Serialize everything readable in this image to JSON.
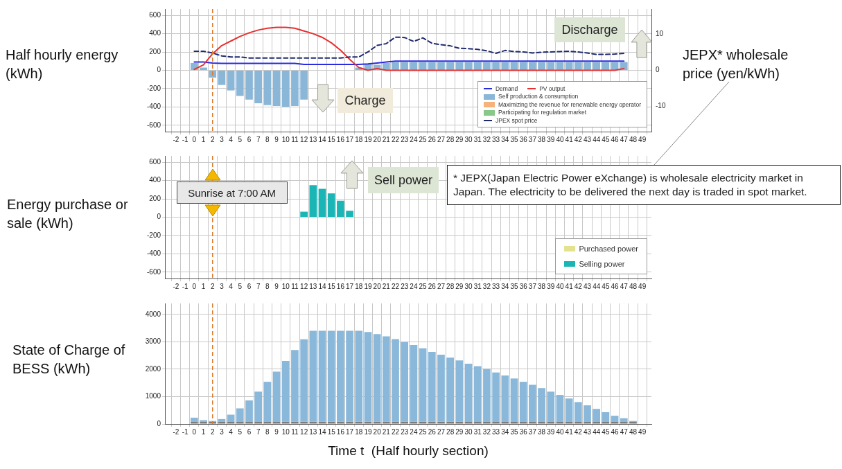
{
  "chart_data": [
    {
      "type": "bar",
      "ylabel": "Half hourly energy (kWh)",
      "y2label": "JEPX* wholesale price (yen/kWh)",
      "x": [
        0,
        1,
        2,
        3,
        4,
        5,
        6,
        7,
        8,
        9,
        10,
        11,
        12,
        13,
        14,
        15,
        16,
        17,
        18,
        19,
        20,
        21,
        22,
        23,
        24,
        25,
        26,
        27,
        28,
        29,
        30,
        31,
        32,
        33,
        34,
        35,
        36,
        37,
        38,
        39,
        40,
        41,
        42,
        43,
        44,
        45,
        46,
        47
      ],
      "xlim": [
        -2.7,
        49.5
      ],
      "xticks": [
        -2,
        -1,
        0,
        1,
        2,
        3,
        4,
        5,
        6,
        7,
        8,
        9,
        10,
        11,
        12,
        13,
        14,
        15,
        16,
        17,
        18,
        19,
        20,
        21,
        22,
        23,
        24,
        25,
        26,
        27,
        28,
        29,
        30,
        31,
        32,
        33,
        34,
        35,
        36,
        37,
        38,
        39,
        40,
        41,
        42,
        43,
        44,
        45,
        46,
        47,
        48,
        49
      ],
      "ylim": [
        -670,
        670
      ],
      "yticks": [
        -600,
        -400,
        -200,
        0,
        200,
        400,
        600
      ],
      "y2lim": [
        -17,
        17
      ],
      "y2ticks": [
        -10,
        0,
        10
      ],
      "grid": true,
      "legend": "bottom right",
      "marker": "none",
      "ref_lines": [
        {
          "axis": "x",
          "value": 2,
          "color": "#e07b28",
          "line_style": "dashed"
        }
      ],
      "annotations": [
        "Discharge",
        "Charge"
      ],
      "series": [
        {
          "name": "Demand",
          "type": "line",
          "color": "#2a2ae0",
          "values": [
            90,
            90,
            80,
            75,
            75,
            75,
            75,
            75,
            75,
            75,
            75,
            75,
            65,
            65,
            65,
            65,
            65,
            65,
            65,
            70,
            80,
            90,
            100,
            100,
            100,
            100,
            100,
            100,
            100,
            100,
            100,
            100,
            100,
            100,
            100,
            100,
            100,
            100,
            100,
            100,
            100,
            100,
            100,
            100,
            100,
            100,
            100,
            100
          ]
        },
        {
          "name": "PV output",
          "type": "line",
          "color": "#e83030",
          "values": [
            10,
            60,
            180,
            270,
            320,
            370,
            410,
            440,
            460,
            470,
            470,
            460,
            430,
            400,
            360,
            300,
            220,
            120,
            30,
            0,
            20,
            0,
            0,
            0,
            0,
            0,
            0,
            0,
            0,
            0,
            0,
            0,
            0,
            0,
            0,
            0,
            0,
            0,
            0,
            0,
            0,
            0,
            0,
            0,
            0,
            0,
            0,
            20
          ]
        },
        {
          "name": "Self production & consumption",
          "type": "bar",
          "color": "#8ab6d8",
          "values": [
            80,
            30,
            -80,
            -160,
            -220,
            -280,
            -320,
            -360,
            -380,
            -390,
            -400,
            -390,
            -320,
            null,
            null,
            null,
            null,
            null,
            30,
            70,
            60,
            80,
            90,
            90,
            90,
            90,
            90,
            90,
            90,
            90,
            90,
            90,
            90,
            90,
            90,
            90,
            90,
            90,
            90,
            90,
            90,
            90,
            90,
            90,
            90,
            90,
            90,
            90
          ]
        },
        {
          "name": "Maximizing the revenue  for renewable  energy operator",
          "type": "bar",
          "color": "#f5b27a",
          "values": [
            null,
            null,
            null,
            null,
            null,
            null,
            null,
            null,
            null,
            null,
            null,
            null,
            null,
            null,
            null,
            null,
            null,
            null,
            null,
            null,
            null,
            null,
            null,
            null,
            null,
            null,
            null,
            null,
            null,
            null,
            null,
            null,
            null,
            null,
            null,
            null,
            null,
            null,
            null,
            null,
            null,
            null,
            null,
            null,
            null,
            null,
            null,
            null
          ]
        },
        {
          "name": "Participating for regulation  market",
          "type": "bar",
          "color": "#88c888",
          "values": [
            null,
            null,
            null,
            null,
            null,
            null,
            null,
            null,
            null,
            null,
            null,
            null,
            null,
            null,
            null,
            null,
            null,
            null,
            null,
            null,
            null,
            null,
            null,
            null,
            null,
            null,
            null,
            null,
            null,
            null,
            null,
            null,
            null,
            null,
            null,
            null,
            null,
            null,
            null,
            null,
            null,
            null,
            null,
            null,
            null,
            null,
            null,
            null
          ]
        },
        {
          "name": "JPEX spot price",
          "type": "line",
          "axis": "y2",
          "line_style": "dashed",
          "color": "#1f2a6e",
          "values": [
            5.3,
            5.3,
            4.8,
            4.0,
            3.7,
            3.7,
            3.4,
            3.4,
            3.4,
            3.4,
            3.4,
            3.4,
            3.4,
            3.4,
            3.4,
            3.4,
            3.4,
            3.7,
            3.7,
            5.1,
            6.9,
            7.4,
            9.2,
            9.1,
            8.0,
            9.0,
            7.5,
            7.1,
            6.8,
            6.1,
            6.0,
            5.8,
            5.4,
            4.7,
            5.5,
            5.2,
            5.1,
            4.8,
            5.0,
            5.1,
            5.2,
            5.3,
            5.1,
            4.8,
            4.4,
            4.4,
            4.5,
            4.7
          ]
        }
      ]
    },
    {
      "type": "bar",
      "ylabel": "Energy purchase or sale (kWh)",
      "x": [
        12,
        13,
        14,
        15,
        16,
        17
      ],
      "xlim": [
        -2.7,
        49.5
      ],
      "xticks": [
        -2,
        -1,
        0,
        1,
        2,
        3,
        4,
        5,
        6,
        7,
        8,
        9,
        10,
        11,
        12,
        13,
        14,
        15,
        16,
        17,
        18,
        19,
        20,
        21,
        22,
        23,
        24,
        25,
        26,
        27,
        28,
        29,
        30,
        31,
        32,
        33,
        34,
        35,
        36,
        37,
        38,
        39,
        40,
        41,
        42,
        43,
        44,
        45,
        46,
        47,
        48,
        49
      ],
      "ylim": [
        -670,
        670
      ],
      "yticks": [
        -600,
        -400,
        -200,
        0,
        200,
        400,
        600
      ],
      "grid": true,
      "legend": "bottom right",
      "ref_lines": [
        {
          "axis": "x",
          "value": 2,
          "color": "#e07b28",
          "line_style": "dashed"
        }
      ],
      "annotations": [
        "Sell power",
        "* JEPX(Japan Electric Power eXchange) is wholesale electricity market in Japan. The electricity to be delivered the next day is traded in spot market.",
        "Sunrise at 7:00 AM"
      ],
      "series": [
        {
          "name": "Purchased power",
          "color": "#e3e38f",
          "values": [
            null,
            null,
            null,
            null,
            null,
            null
          ]
        },
        {
          "name": "Selling power",
          "color": "#1ab5b5",
          "values": [
            60,
            350,
            310,
            260,
            180,
            70
          ]
        }
      ]
    },
    {
      "type": "bar",
      "ylabel": "State of Charge of BESS (kWh)",
      "xlabel": "Time t  (Half hourly section)",
      "x": [
        0,
        1,
        2,
        3,
        4,
        5,
        6,
        7,
        8,
        9,
        10,
        11,
        12,
        13,
        14,
        15,
        16,
        17,
        18,
        19,
        20,
        21,
        22,
        23,
        24,
        25,
        26,
        27,
        28,
        29,
        30,
        31,
        32,
        33,
        34,
        35,
        36,
        37,
        38,
        39,
        40,
        41,
        42,
        43,
        44,
        45,
        46,
        47,
        48
      ],
      "xlim": [
        -2.7,
        49.5
      ],
      "xticks": [
        -2,
        -1,
        0,
        1,
        2,
        3,
        4,
        5,
        6,
        7,
        8,
        9,
        10,
        11,
        12,
        13,
        14,
        15,
        16,
        17,
        18,
        19,
        20,
        21,
        22,
        23,
        24,
        25,
        26,
        27,
        28,
        29,
        30,
        31,
        32,
        33,
        34,
        35,
        36,
        37,
        38,
        39,
        40,
        41,
        42,
        43,
        44,
        45,
        46,
        47,
        48,
        49
      ],
      "ylim": [
        0,
        4400
      ],
      "yticks": [
        0,
        1000,
        2000,
        3000,
        4000
      ],
      "grid": true,
      "stacked": true,
      "ref_lines": [
        {
          "axis": "x",
          "value": 2,
          "color": "#e07b28",
          "line_style": "dashed"
        }
      ],
      "series": [
        {
          "color": "#7c7c7c",
          "values": [
            80,
            80,
            80,
            80,
            80,
            80,
            80,
            80,
            80,
            80,
            80,
            80,
            80,
            80,
            80,
            80,
            80,
            80,
            80,
            80,
            80,
            80,
            80,
            80,
            80,
            80,
            80,
            80,
            80,
            80,
            80,
            80,
            80,
            80,
            80,
            80,
            80,
            80,
            80,
            80,
            80,
            80,
            80,
            80,
            80,
            80,
            80,
            80,
            80
          ]
        },
        {
          "color": "#8ab8da",
          "values": [
            150,
            60,
            30,
            100,
            260,
            490,
            780,
            1100,
            1460,
            1830,
            2220,
            2620,
            3010,
            3320,
            3320,
            3320,
            3320,
            3320,
            3320,
            3280,
            3200,
            3120,
            3020,
            2910,
            2800,
            2680,
            2550,
            2450,
            2340,
            2240,
            2120,
            2030,
            1930,
            1800,
            1690,
            1580,
            1460,
            1350,
            1230,
            1100,
            980,
            850,
            720,
            600,
            470,
            350,
            220,
            130,
            30
          ]
        }
      ]
    }
  ]
}
